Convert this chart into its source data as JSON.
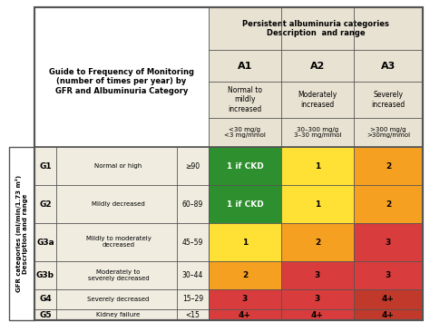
{
  "title_alb": "Persistent albuminuria categories\nDescription  and range",
  "col_headers": [
    "A1",
    "A2",
    "A3"
  ],
  "col_desc": [
    "Normal to\nmildly\nincreased",
    "Moderately\nincreased",
    "Severely\nincreased"
  ],
  "col_range": [
    "<30 mg/g\n<3 mg/mmol",
    "30–300 mg/g\n3–30 mg/mmol",
    ">300 mg/g\n>30mg/mmol"
  ],
  "row_labels": [
    "G1",
    "G2",
    "G3a",
    "G3b",
    "G4",
    "G5"
  ],
  "row_desc": [
    "Normal or high",
    "Mildly decreased",
    "Mildly to moderately\ndecreased",
    "Moderately to\nseverely decreased",
    "Severely decreased",
    "Kidney failure"
  ],
  "row_range": [
    "≥90",
    "60–89",
    "45–59",
    "30–44",
    "15–29",
    "<15"
  ],
  "cell_values": [
    [
      "1 if CKD",
      "1",
      "2"
    ],
    [
      "1 if CKD",
      "1",
      "2"
    ],
    [
      "1",
      "2",
      "3"
    ],
    [
      "2",
      "3",
      "3"
    ],
    [
      "3",
      "3",
      "4+"
    ],
    [
      "4+",
      "4+",
      "4+"
    ]
  ],
  "cell_colors": [
    [
      "#2d8f2d",
      "#ffe135",
      "#f5a020"
    ],
    [
      "#2d8f2d",
      "#ffe135",
      "#f5a020"
    ],
    [
      "#ffe135",
      "#f5a020",
      "#d93c3c"
    ],
    [
      "#f5a020",
      "#d93c3c",
      "#d93c3c"
    ],
    [
      "#d93c3c",
      "#d93c3c",
      "#c0392b"
    ],
    [
      "#d93c3c",
      "#d93c3c",
      "#c0392b"
    ]
  ],
  "left_label": "GFR categories (ml/min/1.73 m²)\nDescription and range",
  "guide_text": "Guide to Frequency of Monitoring\n(number of times per year) by\nGFR and Albuminuria Category",
  "bg_color": "#f0ece0",
  "header_bg": "#e8e2d2",
  "border_color": "#555555",
  "white": "#ffffff"
}
